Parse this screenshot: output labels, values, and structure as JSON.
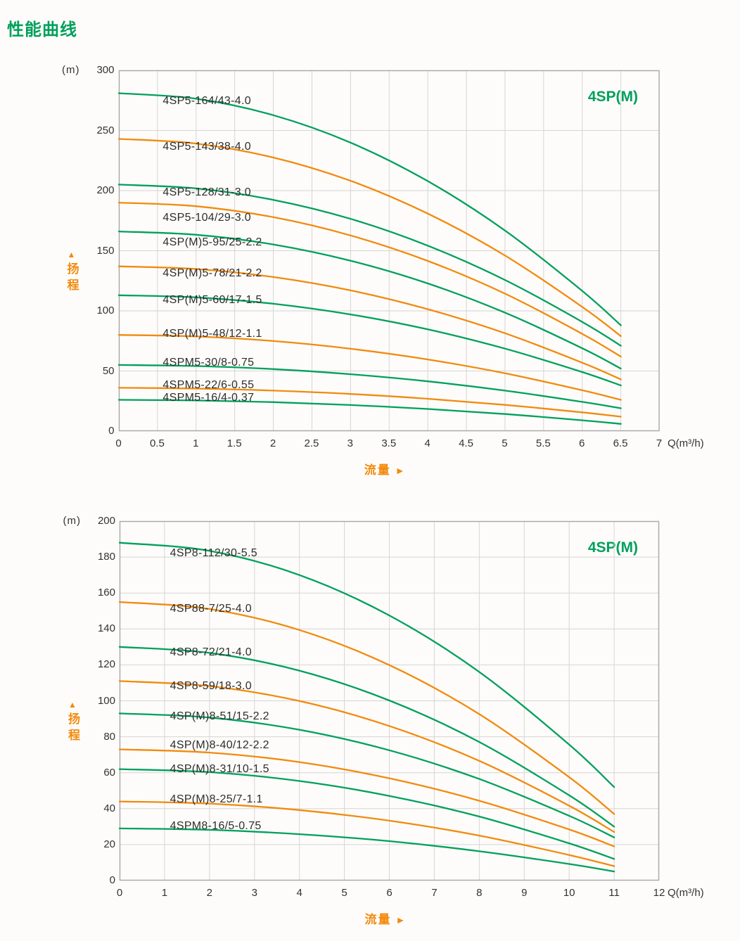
{
  "page_title": "性能曲线",
  "palette": {
    "green": "#00a05c",
    "orange": "#f28a0e",
    "label_text": "#2d2d2d",
    "grid": "#d5d5d5",
    "axis": "#a9a9a9"
  },
  "chart_data": [
    {
      "type": "line",
      "title": "4SP(M)",
      "yunit": "(m)",
      "xunit": "Q(m³/h)",
      "ylabel": "扬程",
      "xlabel": "流量",
      "y_axis_arrow": "▲",
      "x_axis_arrow": "►",
      "xlim": [
        0,
        7
      ],
      "ylim": [
        0,
        300
      ],
      "x_tick_labels": [
        "0",
        "0.5",
        "1",
        "1.5",
        "2",
        "2.5",
        "3",
        "3.5",
        "4",
        "4.5",
        "5",
        "5.5",
        "6",
        "6.5",
        "7"
      ],
      "y_tick_labels": [
        "0",
        "50",
        "100",
        "150",
        "200",
        "250",
        "300"
      ],
      "grid": true,
      "legend_position": "none",
      "series": [
        {
          "label": "4SP5-164/43-4.0",
          "color": "green",
          "label_pos": [
            0.555,
            274
          ],
          "points": [
            [
              0,
              281
            ],
            [
              1,
              276.4
            ],
            [
              2,
              262.7
            ],
            [
              3,
              239.9
            ],
            [
              4,
              207.9
            ],
            [
              5,
              166.8
            ],
            [
              6,
              116.6
            ],
            [
              6.5,
              88
            ]
          ]
        },
        {
          "label": "4SP5-143/38-4.0",
          "color": "orange",
          "label_pos": [
            0.555,
            236
          ],
          "points": [
            [
              0,
              243
            ],
            [
              1,
              239.1
            ],
            [
              2,
              227.5
            ],
            [
              3,
              208.1
            ],
            [
              4,
              180.9
            ],
            [
              5,
              146
            ],
            [
              6,
              103.3
            ],
            [
              6.5,
              79
            ]
          ]
        },
        {
          "label": "4SP5-128/31-3.0",
          "color": "green",
          "label_pos": [
            0.555,
            198
          ],
          "points": [
            [
              0,
              205
            ],
            [
              1,
              201.8
            ],
            [
              2,
              192.3
            ],
            [
              3,
              176.5
            ],
            [
              4,
              154.2
            ],
            [
              5,
              125.7
            ],
            [
              6,
              90.8
            ],
            [
              6.5,
              71
            ]
          ]
        },
        {
          "label": "4SP5-104/29-3.0",
          "color": "orange",
          "label_pos": [
            0.555,
            177
          ],
          "points": [
            [
              0,
              190
            ],
            [
              1,
              187
            ],
            [
              2,
              177.9
            ],
            [
              3,
              162.7
            ],
            [
              4,
              141.5
            ],
            [
              5,
              114.3
            ],
            [
              6,
              80.9
            ],
            [
              6.5,
              62
            ]
          ]
        },
        {
          "label": "4SP(M)5-95/25-2.2",
          "color": "green",
          "label_pos": [
            0.555,
            157
          ],
          "points": [
            [
              0,
              166
            ],
            [
              1,
              163.3
            ],
            [
              2,
              155.2
            ],
            [
              3,
              141.7
            ],
            [
              4,
              122.8
            ],
            [
              5,
              98.5
            ],
            [
              6,
              68.9
            ],
            [
              6.5,
              52
            ]
          ]
        },
        {
          "label": "4SP(M)5-78/21-2.2",
          "color": "orange",
          "label_pos": [
            0.555,
            131
          ],
          "points": [
            [
              0,
              137
            ],
            [
              1,
              134.8
            ],
            [
              2,
              128.1
            ],
            [
              3,
              117
            ],
            [
              4,
              101.4
            ],
            [
              5,
              81.4
            ],
            [
              6,
              56.9
            ],
            [
              6.5,
              43
            ]
          ]
        },
        {
          "label": "4SP(M)5-60/17-1.5",
          "color": "green",
          "label_pos": [
            0.555,
            109
          ],
          "points": [
            [
              0,
              113
            ],
            [
              1,
              111.2
            ],
            [
              2,
              105.9
            ],
            [
              3,
              97
            ],
            [
              4,
              84.6
            ],
            [
              5,
              68.6
            ],
            [
              6,
              49.1
            ],
            [
              6.5,
              38
            ]
          ]
        },
        {
          "label": "4SP(M)5-48/12-1.1",
          "color": "orange",
          "label_pos": [
            0.555,
            80.5
          ],
          "points": [
            [
              0,
              80
            ],
            [
              1,
              78.7
            ],
            [
              2,
              74.9
            ],
            [
              3,
              68.5
            ],
            [
              4,
              59.6
            ],
            [
              5,
              48.1
            ],
            [
              6,
              34
            ],
            [
              6.5,
              26
            ]
          ]
        },
        {
          "label": "4SPM5-30/8-0.75",
          "color": "green",
          "label_pos": [
            0.555,
            57
          ],
          "points": [
            [
              0,
              55
            ],
            [
              1,
              54.1
            ],
            [
              2,
              51.6
            ],
            [
              3,
              47.3
            ],
            [
              4,
              41.4
            ],
            [
              5,
              33.7
            ],
            [
              6,
              24.3
            ],
            [
              6.5,
              19
            ]
          ]
        },
        {
          "label": "4SPM5-22/6-0.55",
          "color": "orange",
          "label_pos": [
            0.555,
            38
          ],
          "points": [
            [
              0,
              36
            ],
            [
              1,
              35.4
            ],
            [
              2,
              33.7
            ],
            [
              3,
              30.9
            ],
            [
              4,
              26.9
            ],
            [
              5,
              21.8
            ],
            [
              6,
              15.6
            ],
            [
              6.5,
              12
            ]
          ]
        },
        {
          "label": "4SPM5-16/4-0.37",
          "color": "green",
          "label_pos": [
            0.555,
            27.5
          ],
          "points": [
            [
              0,
              26
            ],
            [
              1,
              25.5
            ],
            [
              2,
              24.1
            ],
            [
              3,
              21.7
            ],
            [
              4,
              18.4
            ],
            [
              5,
              14.2
            ],
            [
              6,
              9
            ],
            [
              6.5,
              6
            ]
          ]
        }
      ]
    },
    {
      "type": "line",
      "title": "4SP(M)",
      "yunit": "(m)",
      "xunit": "Q(m³/h)",
      "ylabel": "扬程",
      "xlabel": "流量",
      "y_axis_arrow": "▲",
      "x_axis_arrow": "►",
      "xlim": [
        0,
        12
      ],
      "ylim": [
        0,
        200
      ],
      "x_tick_labels": [
        "0",
        "1",
        "2",
        "3",
        "4",
        "5",
        "6",
        "7",
        "8",
        "9",
        "10",
        "11",
        "12"
      ],
      "y_tick_labels": [
        "0",
        "20",
        "40",
        "60",
        "80",
        "100",
        "120",
        "140",
        "160",
        "180",
        "200"
      ],
      "grid": true,
      "legend_position": "none",
      "series": [
        {
          "label": "4SP8-112/30-5.5",
          "color": "green",
          "label_pos": [
            1.09,
            182
          ],
          "points": [
            [
              0,
              188
            ],
            [
              2,
              183.5
            ],
            [
              4,
              170
            ],
            [
              6,
              147.5
            ],
            [
              8,
              116.1
            ],
            [
              10,
              75.6
            ],
            [
              11,
              52
            ]
          ]
        },
        {
          "label": "4SP88-7/25-4.0",
          "color": "orange",
          "label_pos": [
            1.09,
            151
          ],
          "points": [
            [
              0,
              155
            ],
            [
              2,
              151.1
            ],
            [
              4,
              139.4
            ],
            [
              6,
              119.9
            ],
            [
              8,
              92.6
            ],
            [
              10,
              57.5
            ],
            [
              11,
              37
            ]
          ]
        },
        {
          "label": "4SP8-72/21-4.0",
          "color": "green",
          "label_pos": [
            1.09,
            127
          ],
          "points": [
            [
              0,
              130
            ],
            [
              2,
              126.7
            ],
            [
              4,
              116.8
            ],
            [
              6,
              100.2
            ],
            [
              8,
              77.1
            ],
            [
              10,
              47.4
            ],
            [
              11,
              30
            ]
          ]
        },
        {
          "label": "4SP8-59/18-3.0",
          "color": "orange",
          "label_pos": [
            1.09,
            108
          ],
          "points": [
            [
              0,
              111
            ],
            [
              2,
              108.2
            ],
            [
              4,
              99.9
            ],
            [
              6,
              86
            ],
            [
              8,
              66.6
            ],
            [
              10,
              41.6
            ],
            [
              11,
              27
            ]
          ]
        },
        {
          "label": "4SP(M)8-51/15-2.2",
          "color": "green",
          "label_pos": [
            1.09,
            91
          ],
          "points": [
            [
              0,
              93
            ],
            [
              2,
              90.7
            ],
            [
              4,
              83.9
            ],
            [
              6,
              72.5
            ],
            [
              8,
              56.5
            ],
            [
              10,
              36
            ],
            [
              11,
              24
            ]
          ]
        },
        {
          "label": "4SP(M)8-40/12-2.2",
          "color": "orange",
          "label_pos": [
            1.09,
            75
          ],
          "points": [
            [
              0,
              73
            ],
            [
              2,
              71.2
            ],
            [
              4,
              65.9
            ],
            [
              6,
              56.9
            ],
            [
              8,
              44.4
            ],
            [
              10,
              28.4
            ],
            [
              11,
              19
            ]
          ]
        },
        {
          "label": "4SP(M)8-31/10-1.5",
          "color": "green",
          "label_pos": [
            1.09,
            62
          ],
          "points": [
            [
              0,
              62
            ],
            [
              2,
              60.3
            ],
            [
              4,
              55.4
            ],
            [
              6,
              47.1
            ],
            [
              8,
              35.6
            ],
            [
              10,
              20.7
            ],
            [
              11,
              12
            ]
          ]
        },
        {
          "label": "4SP(M)8-25/7-1.1",
          "color": "orange",
          "label_pos": [
            1.09,
            45
          ],
          "points": [
            [
              0,
              44
            ],
            [
              2,
              42.8
            ],
            [
              4,
              39.2
            ],
            [
              6,
              33.3
            ],
            [
              8,
              25
            ],
            [
              10,
              14.2
            ],
            [
              11,
              8
            ]
          ]
        },
        {
          "label": "4SPM8-16/5-0.75",
          "color": "green",
          "label_pos": [
            1.09,
            30
          ],
          "points": [
            [
              0,
              29
            ],
            [
              2,
              28.2
            ],
            [
              4,
              25.8
            ],
            [
              6,
              21.9
            ],
            [
              8,
              16.3
            ],
            [
              10,
              9.2
            ],
            [
              11,
              5
            ]
          ]
        }
      ]
    }
  ]
}
